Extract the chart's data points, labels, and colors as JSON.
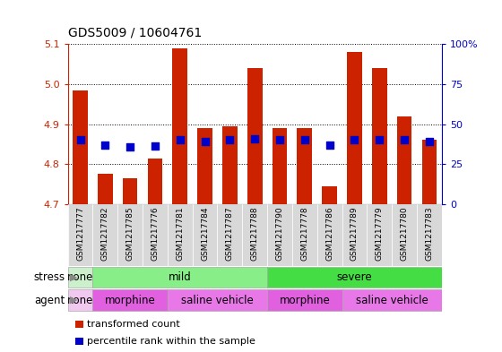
{
  "title": "GDS5009 / 10604761",
  "samples": [
    "GSM1217777",
    "GSM1217782",
    "GSM1217785",
    "GSM1217776",
    "GSM1217781",
    "GSM1217784",
    "GSM1217787",
    "GSM1217788",
    "GSM1217790",
    "GSM1217778",
    "GSM1217786",
    "GSM1217789",
    "GSM1217779",
    "GSM1217780",
    "GSM1217783"
  ],
  "red_values": [
    4.985,
    4.775,
    4.765,
    4.815,
    5.09,
    4.89,
    4.895,
    5.04,
    4.89,
    4.89,
    4.745,
    5.08,
    5.04,
    4.92,
    4.86
  ],
  "blue_values": [
    4.862,
    4.847,
    4.843,
    4.845,
    4.862,
    4.856,
    4.862,
    4.863,
    4.862,
    4.861,
    4.847,
    4.86,
    4.861,
    4.862,
    4.857
  ],
  "ylim_left": [
    4.7,
    5.1
  ],
  "yticks_left": [
    4.7,
    4.8,
    4.9,
    5.0,
    5.1
  ],
  "yticks_right": [
    0,
    25,
    50,
    75,
    100
  ],
  "ytick_labels_right": [
    "0",
    "25",
    "50",
    "75",
    "100%"
  ],
  "bar_color": "#cc2200",
  "dot_color": "#0000cc",
  "bar_bottom": 4.7,
  "axis_color_left": "#cc2200",
  "axis_color_right": "#0000cc",
  "bar_width": 0.6,
  "dot_size": 30,
  "stress_groups": [
    {
      "label": "none",
      "start": 0,
      "end": 1,
      "color": "#ccf0cc"
    },
    {
      "label": "mild",
      "start": 1,
      "end": 8,
      "color": "#88ee88"
    },
    {
      "label": "severe",
      "start": 8,
      "end": 15,
      "color": "#44dd44"
    }
  ],
  "agent_groups": [
    {
      "label": "none",
      "start": 0,
      "end": 1,
      "color": "#f0c8f0"
    },
    {
      "label": "morphine",
      "start": 1,
      "end": 4,
      "color": "#e060e0"
    },
    {
      "label": "saline vehicle",
      "start": 4,
      "end": 8,
      "color": "#e878e8"
    },
    {
      "label": "morphine",
      "start": 8,
      "end": 11,
      "color": "#e060e0"
    },
    {
      "label": "saline vehicle",
      "start": 11,
      "end": 15,
      "color": "#e878e8"
    }
  ]
}
